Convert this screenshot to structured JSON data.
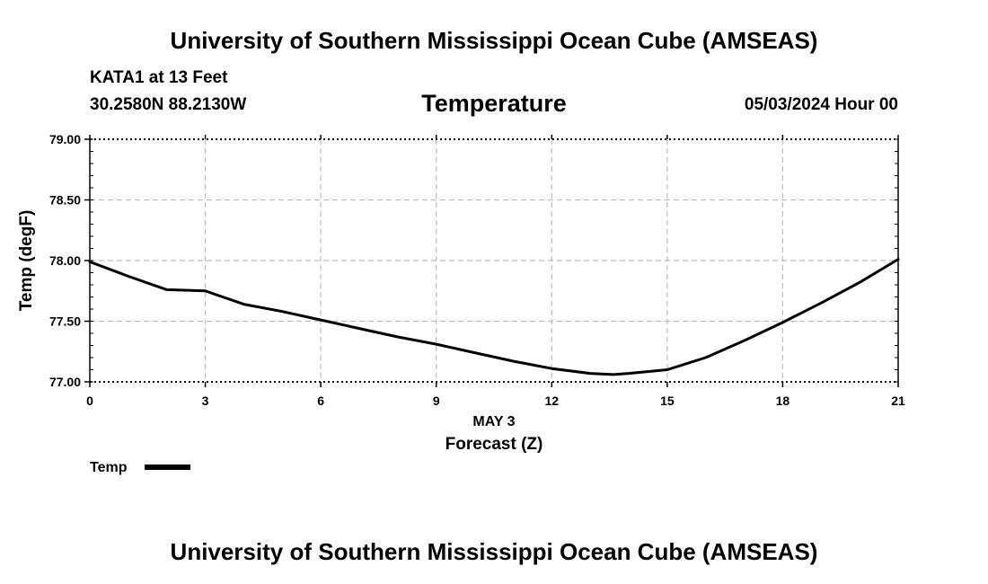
{
  "header": {
    "title": "University of Southern Mississippi Ocean Cube (AMSEAS)",
    "station": "KATA1 at 13 Feet",
    "coords": "30.2580N  88.2130W",
    "variable": "Temperature",
    "datetime": "05/03/2024 Hour 00"
  },
  "footer": {
    "title": "University of Southern Mississippi Ocean Cube (AMSEAS)"
  },
  "chart_data": {
    "type": "line",
    "title": "Temperature",
    "xlabel": "Forecast (Z)",
    "date_label": "MAY 3",
    "ylabel": "Temp (degF)",
    "xlim": [
      0,
      21
    ],
    "ylim": [
      77.0,
      79.0
    ],
    "x_ticks": [
      0,
      3,
      6,
      9,
      12,
      15,
      18,
      21
    ],
    "x_tick_labels": [
      "0",
      "3",
      "6",
      "9",
      "12",
      "15",
      "18",
      "21"
    ],
    "y_ticks": [
      77.0,
      77.5,
      78.0,
      78.5,
      79.0
    ],
    "y_tick_labels": [
      "77.00",
      "77.50",
      "78.00",
      "78.50",
      "79.00"
    ],
    "grid": true,
    "legend": "bottom-left",
    "series": [
      {
        "name": "Temp",
        "color": "#000000",
        "x": [
          0,
          1,
          2,
          3,
          4,
          5,
          6,
          7,
          8,
          9,
          10,
          11,
          12,
          13,
          13.6,
          14,
          15,
          16,
          17,
          18,
          19,
          20,
          21
        ],
        "values": [
          77.99,
          77.87,
          77.76,
          77.75,
          77.64,
          77.58,
          77.51,
          77.44,
          77.37,
          77.31,
          77.24,
          77.17,
          77.11,
          77.07,
          77.06,
          77.07,
          77.1,
          77.2,
          77.34,
          77.49,
          77.65,
          77.82,
          78.01
        ]
      }
    ]
  }
}
